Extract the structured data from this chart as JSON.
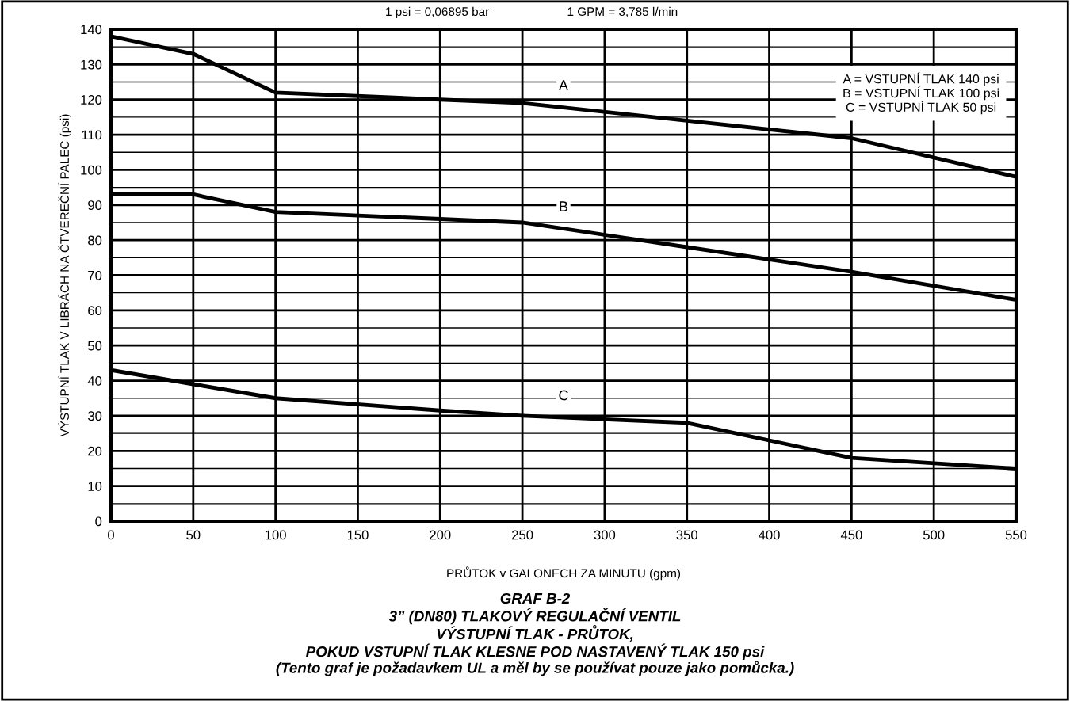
{
  "chart_data": {
    "type": "line",
    "title": "GRAF B-2\n3” (DN80) TLAKOVÝ REGULAČNÍ VENTIL\nVÝSTUPNÍ TLAK - PRŮTOK,\nPOKUD VSTUPNÍ TLAK KLESNE POD NASTAVENÝ TLAK 150 psi\n(Tento graf je požadavkem UL a měl by se používat pouze jako pomůcka.)",
    "xlabel": "PRŮTOK v GALONECH ZA MINUTU (gpm)",
    "ylabel": "VÝSTUPNÍ TLAK V LIBRÁCH NA ČTVEREČNÍ PALEC (psi)",
    "annotations": [
      "1 psi = 0,06895 bar",
      "1 GPM = 3,785 l/min",
      "A = VSTUPNÍ TLAK 140 psi\nB = VSTUPNÍ TLAK 100 psi\nC = VSTUPNÍ TLAK 50 psi"
    ],
    "x": [
      0,
      50,
      100,
      200,
      250,
      350,
      450,
      550
    ],
    "series": [
      {
        "name": "A",
        "color": "#000000",
        "values": [
          138,
          133,
          122,
          120,
          119,
          114,
          109,
          98
        ]
      },
      {
        "name": "B",
        "color": "#000000",
        "values": [
          93,
          93,
          88,
          86,
          85,
          78,
          71,
          63
        ]
      },
      {
        "name": "C",
        "color": "#000000",
        "values": [
          43,
          39,
          35,
          31.5,
          30,
          28,
          18,
          15
        ]
      }
    ],
    "xlim": [
      0,
      550
    ],
    "xticks": [
      0,
      50,
      100,
      150,
      200,
      250,
      300,
      350,
      400,
      450,
      500,
      550
    ],
    "ylim": [
      0,
      140
    ],
    "yticks": [
      0,
      {
        "value": 5,
        "label": null
      },
      10,
      {
        "value": 15,
        "label": null
      },
      20,
      {
        "value": 25,
        "label": null
      },
      30,
      {
        "value": 35,
        "label": null
      },
      40,
      {
        "value": 45,
        "label": null
      },
      50,
      {
        "value": 55,
        "label": null
      },
      60,
      {
        "value": 65,
        "label": null
      },
      70,
      {
        "value": 75,
        "label": null
      },
      80,
      {
        "value": 85,
        "label": null
      },
      90,
      {
        "value": 95,
        "label": null
      },
      100,
      {
        "value": 105,
        "label": null
      },
      110,
      {
        "value": 115,
        "label": null
      },
      120,
      {
        "value": 125,
        "label": null
      },
      130,
      {
        "value": 135,
        "label": null
      },
      140
    ],
    "grid": true,
    "legend": false,
    "marker": "none",
    "line_style": "solid"
  }
}
